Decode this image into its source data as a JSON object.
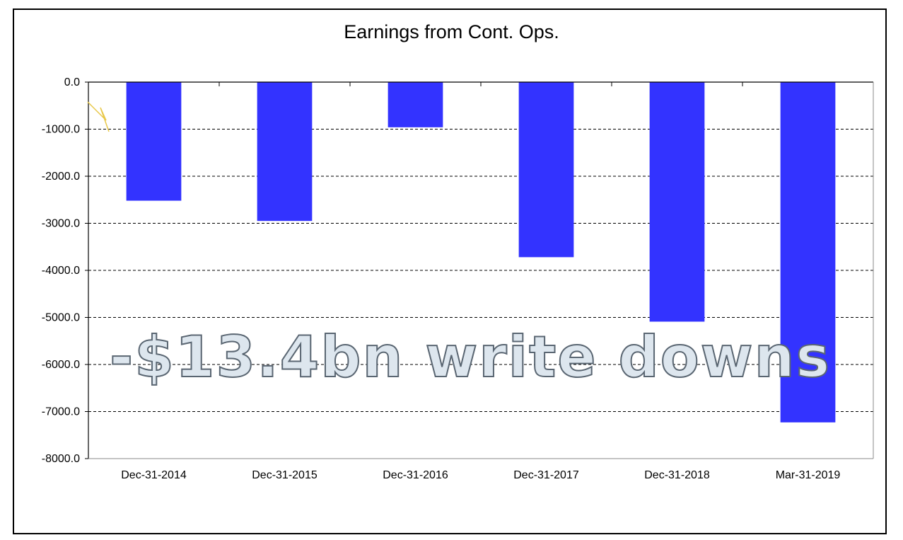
{
  "chart_data": {
    "type": "bar",
    "title": "Earnings from Cont. Ops.",
    "categories": [
      "Dec-31-2014",
      "Dec-31-2015",
      "Dec-31-2016",
      "Dec-31-2017",
      "Dec-31-2018",
      "Mar-31-2019"
    ],
    "values": [
      -2520,
      -2950,
      -960,
      -3720,
      -5090,
      -7230
    ],
    "ylim": [
      -8000,
      0
    ],
    "yticks": [
      "0.0",
      "-1000.0",
      "-2000.0",
      "-3000.0",
      "-4000.0",
      "-5000.0",
      "-6000.0",
      "-7000.0",
      "-8000.0"
    ],
    "grid": "dashed horizontal",
    "bar_color": "#3333ff",
    "annotation": "-$13.4bn write downs"
  }
}
